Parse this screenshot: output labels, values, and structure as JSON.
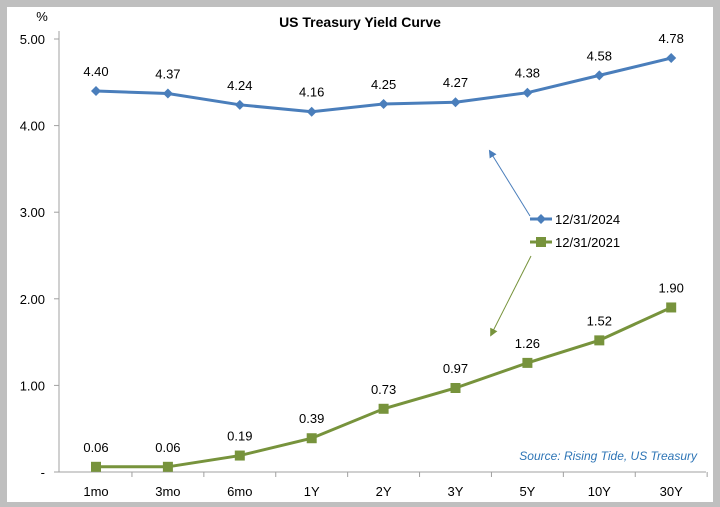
{
  "chart_data": {
    "type": "line",
    "title": "US Treasury Yield Curve",
    "ylabel": "%",
    "xlabel": "",
    "ylim": [
      0,
      5
    ],
    "yticks": [
      0,
      1,
      2,
      3,
      4,
      5
    ],
    "ytick_labels": [
      "-",
      "1.00",
      "2.00",
      "3.00",
      "4.00",
      "5.00"
    ],
    "categories": [
      "1mo",
      "3mo",
      "6mo",
      "1Y",
      "2Y",
      "3Y",
      "5Y",
      "10Y",
      "30Y"
    ],
    "series": [
      {
        "name": "12/31/2024",
        "color": "#4a7ebb",
        "marker": "diamond",
        "values": [
          4.4,
          4.37,
          4.24,
          4.16,
          4.25,
          4.27,
          4.38,
          4.58,
          4.78
        ],
        "labels": [
          "4.40",
          "4.37",
          "4.24",
          "4.16",
          "4.25",
          "4.27",
          "4.38",
          "4.58",
          "4.78"
        ]
      },
      {
        "name": "12/31/2021",
        "color": "#77933c",
        "marker": "square",
        "values": [
          0.06,
          0.06,
          0.19,
          0.39,
          0.73,
          0.97,
          1.26,
          1.52,
          1.9
        ],
        "labels": [
          "0.06",
          "0.06",
          "0.19",
          "0.39",
          "0.73",
          "0.97",
          "1.26",
          "1.52",
          "1.90"
        ]
      }
    ],
    "legend_position": "right-middle",
    "grid": false,
    "annotation": "Source: Rising Tide, US Treasury"
  }
}
